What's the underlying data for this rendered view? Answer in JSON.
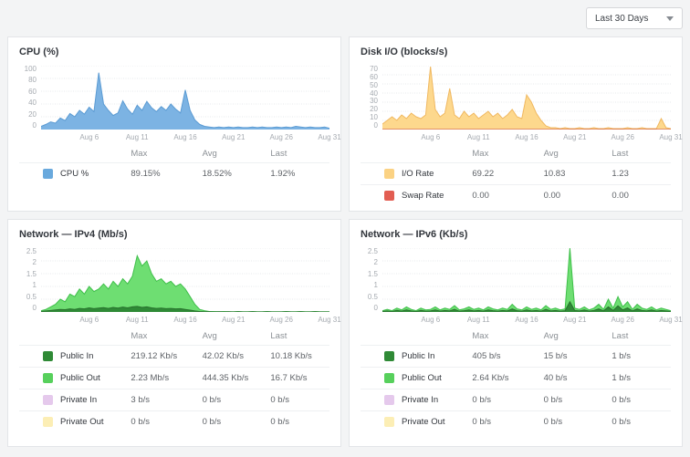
{
  "time_range": {
    "value": "Last 30 Days"
  },
  "legend_headers": {
    "max": "Max",
    "avg": "Avg",
    "last": "Last"
  },
  "xticks": [
    {
      "label": "Aug 6",
      "pos": 0.167
    },
    {
      "label": "Aug 11",
      "pos": 0.333
    },
    {
      "label": "Aug 16",
      "pos": 0.5
    },
    {
      "label": "Aug 21",
      "pos": 0.667
    },
    {
      "label": "Aug 26",
      "pos": 0.833
    },
    {
      "label": "Aug 31",
      "pos": 1.0
    }
  ],
  "panels": [
    {
      "title": "CPU (%)",
      "chart": {
        "type": "area",
        "ymax": 100,
        "yticks": [
          0,
          20,
          40,
          60,
          80,
          100
        ],
        "series": [
          {
            "name": "CPU %",
            "fill": "#7cb3e3",
            "stroke": "#5b9bd3",
            "values": [
              5,
              8,
              12,
              10,
              18,
              14,
              25,
              20,
              30,
              24,
              35,
              28,
              89,
              40,
              30,
              22,
              26,
              45,
              32,
              24,
              38,
              30,
              44,
              34,
              28,
              36,
              30,
              40,
              32,
              26,
              62,
              30,
              15,
              8,
              5,
              4,
              3,
              4,
              3,
              4,
              3,
              4,
              3,
              3,
              4,
              3,
              4,
              3,
              3,
              4,
              3,
              4,
              3,
              5,
              4,
              3,
              4,
              3,
              3,
              4,
              2
            ]
          }
        ]
      },
      "legend": {
        "rows": [
          {
            "label": "CPU %",
            "color": "#69a9dd",
            "max": "89.15%",
            "avg": "18.52%",
            "last": "1.92%"
          }
        ]
      }
    },
    {
      "title": "Disk I/O (blocks/s)",
      "chart": {
        "type": "area",
        "ymax": 70,
        "yticks": [
          0,
          10,
          20,
          30,
          40,
          50,
          60,
          70
        ],
        "series": [
          {
            "name": "I/O Rate",
            "fill": "#fdd88d",
            "stroke": "#f0b860",
            "values": [
              6,
              10,
              14,
              10,
              16,
              12,
              18,
              14,
              12,
              16,
              69,
              22,
              14,
              18,
              45,
              16,
              12,
              20,
              14,
              18,
              12,
              16,
              20,
              14,
              18,
              12,
              16,
              22,
              14,
              12,
              38,
              30,
              18,
              10,
              4,
              2,
              2,
              1,
              2,
              1,
              1,
              2,
              1,
              1,
              2,
              1,
              1,
              2,
              1,
              1,
              1,
              2,
              1,
              1,
              2,
              1,
              1,
              1,
              12,
              2,
              1
            ]
          },
          {
            "name": "Swap Rate",
            "fill": "#e25d52",
            "stroke": "#c94a42",
            "values": [
              0,
              0
            ]
          }
        ]
      },
      "legend": {
        "rows": [
          {
            "label": "I/O Rate",
            "color": "#fbd283",
            "max": "69.22",
            "avg": "10.83",
            "last": "1.23"
          },
          {
            "label": "Swap Rate",
            "color": "#e25d52",
            "max": "0.00",
            "avg": "0.00",
            "last": "0.00"
          }
        ]
      }
    },
    {
      "title": "Network — IPv4 (Mb/s)",
      "chart": {
        "type": "area",
        "ymax": 2.5,
        "yticks": [
          0,
          0.5,
          1,
          1.5,
          2,
          2.5
        ],
        "series": [
          {
            "name": "Public Out",
            "fill": "#6ede72",
            "stroke": "#3fbf4a",
            "values": [
              0.05,
              0.1,
              0.2,
              0.3,
              0.5,
              0.4,
              0.7,
              0.6,
              0.9,
              0.7,
              1.0,
              0.8,
              0.9,
              1.1,
              0.9,
              1.2,
              1.0,
              1.3,
              1.1,
              1.4,
              2.2,
              1.8,
              2.0,
              1.5,
              1.2,
              1.3,
              1.1,
              1.2,
              1.0,
              1.1,
              0.9,
              0.6,
              0.3,
              0.1,
              0.05,
              0.02,
              0.02,
              0.01,
              0.02,
              0.01,
              0.01,
              0.02,
              0.01,
              0.01,
              0.02,
              0.01,
              0.01,
              0.02,
              0.01,
              0.01,
              0.01,
              0.02,
              0.01,
              0.01,
              0.02,
              0.01,
              0.01,
              0.02,
              0.01,
              0.01,
              0.01
            ]
          },
          {
            "name": "Public In",
            "fill": "#2f8a36",
            "stroke": "#276f2c",
            "values": [
              0.02,
              0.04,
              0.06,
              0.08,
              0.1,
              0.09,
              0.12,
              0.1,
              0.14,
              0.12,
              0.16,
              0.13,
              0.15,
              0.17,
              0.14,
              0.18,
              0.15,
              0.19,
              0.16,
              0.2,
              0.22,
              0.18,
              0.2,
              0.16,
              0.14,
              0.15,
              0.13,
              0.14,
              0.12,
              0.13,
              0.1,
              0.07,
              0.04,
              0.02,
              0.01,
              0.01,
              0,
              0.01,
              0,
              0.01,
              0,
              0.01,
              0,
              0,
              0.01,
              0,
              0,
              0.01,
              0,
              0,
              0,
              0.01,
              0,
              0,
              0.01,
              0,
              0,
              0.01,
              0,
              0,
              0
            ]
          }
        ]
      },
      "legend": {
        "rows": [
          {
            "label": "Public In",
            "color": "#2f8a36",
            "max": "219.12 Kb/s",
            "avg": "42.02 Kb/s",
            "last": "10.18 Kb/s"
          },
          {
            "label": "Public Out",
            "color": "#57d05c",
            "max": "2.23 Mb/s",
            "avg": "444.35 Kb/s",
            "last": "16.7 Kb/s"
          },
          {
            "label": "Private In",
            "color": "#e5c9ec",
            "max": "3 b/s",
            "avg": "0 b/s",
            "last": "0 b/s"
          },
          {
            "label": "Private Out",
            "color": "#fceeb5",
            "max": "0 b/s",
            "avg": "0 b/s",
            "last": "0 b/s"
          }
        ]
      }
    },
    {
      "title": "Network — IPv6 (Kb/s)",
      "chart": {
        "type": "area",
        "ymax": 2.5,
        "yticks": [
          0,
          0.5,
          1,
          1.5,
          2,
          2.5
        ],
        "series": [
          {
            "name": "Public Out",
            "fill": "#6ede72",
            "stroke": "#3fbf4a",
            "values": [
              0.05,
              0.1,
              0.05,
              0.15,
              0.08,
              0.2,
              0.1,
              0.05,
              0.15,
              0.08,
              0.1,
              0.2,
              0.08,
              0.15,
              0.1,
              0.25,
              0.08,
              0.12,
              0.2,
              0.1,
              0.15,
              0.08,
              0.2,
              0.12,
              0.08,
              0.15,
              0.1,
              0.3,
              0.12,
              0.08,
              0.2,
              0.1,
              0.15,
              0.08,
              0.25,
              0.1,
              0.15,
              0.08,
              0.12,
              2.5,
              0.15,
              0.1,
              0.2,
              0.08,
              0.15,
              0.3,
              0.1,
              0.5,
              0.15,
              0.6,
              0.2,
              0.4,
              0.1,
              0.3,
              0.15,
              0.1,
              0.2,
              0.08,
              0.15,
              0.1,
              0.05
            ]
          },
          {
            "name": "Public In",
            "fill": "#2f8a36",
            "stroke": "#276f2c",
            "values": [
              0.02,
              0.04,
              0.02,
              0.06,
              0.03,
              0.08,
              0.04,
              0.02,
              0.06,
              0.03,
              0.04,
              0.08,
              0.03,
              0.06,
              0.04,
              0.1,
              0.03,
              0.05,
              0.08,
              0.04,
              0.06,
              0.03,
              0.08,
              0.05,
              0.03,
              0.06,
              0.04,
              0.12,
              0.05,
              0.03,
              0.08,
              0.04,
              0.06,
              0.03,
              0.1,
              0.04,
              0.06,
              0.03,
              0.05,
              0.4,
              0.06,
              0.04,
              0.08,
              0.03,
              0.06,
              0.12,
              0.04,
              0.2,
              0.06,
              0.24,
              0.08,
              0.16,
              0.04,
              0.12,
              0.06,
              0.04,
              0.08,
              0.03,
              0.06,
              0.04,
              0.02
            ]
          }
        ]
      },
      "legend": {
        "rows": [
          {
            "label": "Public In",
            "color": "#2f8a36",
            "max": "405 b/s",
            "avg": "15 b/s",
            "last": "1 b/s"
          },
          {
            "label": "Public Out",
            "color": "#57d05c",
            "max": "2.64 Kb/s",
            "avg": "40 b/s",
            "last": "1 b/s"
          },
          {
            "label": "Private In",
            "color": "#e5c9ec",
            "max": "0 b/s",
            "avg": "0 b/s",
            "last": "0 b/s"
          },
          {
            "label": "Private Out",
            "color": "#fceeb5",
            "max": "0 b/s",
            "avg": "0 b/s",
            "last": "0 b/s"
          }
        ]
      }
    }
  ]
}
